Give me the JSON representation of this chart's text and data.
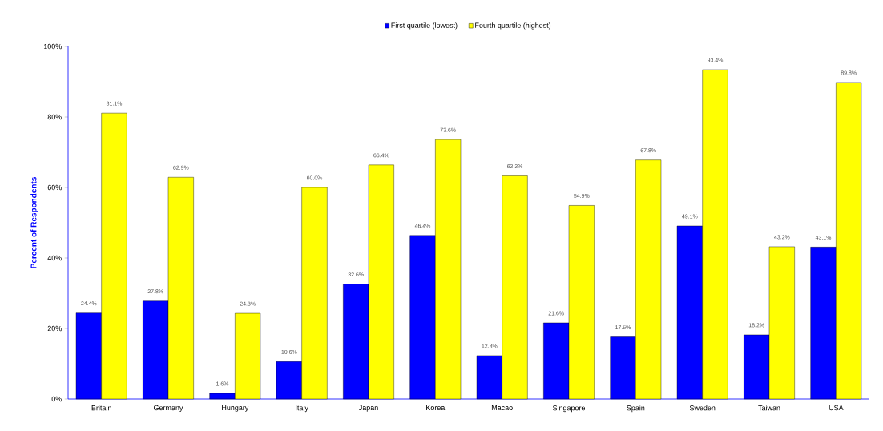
{
  "chart_data": {
    "type": "bar",
    "ylabel": "Percent of Respondents",
    "categories": [
      "Britain",
      "Germany",
      "Hungary",
      "Italy",
      "Japan",
      "Korea",
      "Macao",
      "Singapore",
      "Spain",
      "Sweden",
      "Taiwan",
      "USA"
    ],
    "series": [
      {
        "name": "First quartile (lowest)",
        "color": "#0000ff",
        "values": [
          24.4,
          27.8,
          1.6,
          10.6,
          32.6,
          46.4,
          12.3,
          21.6,
          17.6,
          49.1,
          18.2,
          43.1
        ],
        "value_labels": [
          "24.4%",
          "27.8%",
          "1.6%",
          "10.6%",
          "32.6%",
          "46.4%",
          "12.3%",
          "21.6%",
          "17.6%",
          "49.1%",
          "18.2%",
          "43.1%"
        ]
      },
      {
        "name": "Fourth quartile (highest)",
        "color": "#ffff00",
        "values": [
          81.1,
          62.9,
          24.3,
          60.0,
          66.4,
          73.6,
          63.3,
          54.9,
          67.8,
          93.4,
          43.2,
          89.8
        ],
        "value_labels": [
          "81.1%",
          "62.9%",
          "24.3%",
          "60.0%",
          "66.4%",
          "73.6%",
          "63.3%",
          "54.9%",
          "67.8%",
          "93.4%",
          "43.2%",
          "89.8%"
        ]
      }
    ],
    "ylim": [
      0,
      100
    ],
    "yticks": [
      {
        "value": 0,
        "label": "0%"
      },
      {
        "value": 20,
        "label": "20%"
      },
      {
        "value": 40,
        "label": "40%"
      },
      {
        "value": 60,
        "label": "60%"
      },
      {
        "value": 80,
        "label": "80%"
      },
      {
        "value": 100,
        "label": "100%"
      }
    ],
    "grid": false,
    "legend": "top"
  }
}
